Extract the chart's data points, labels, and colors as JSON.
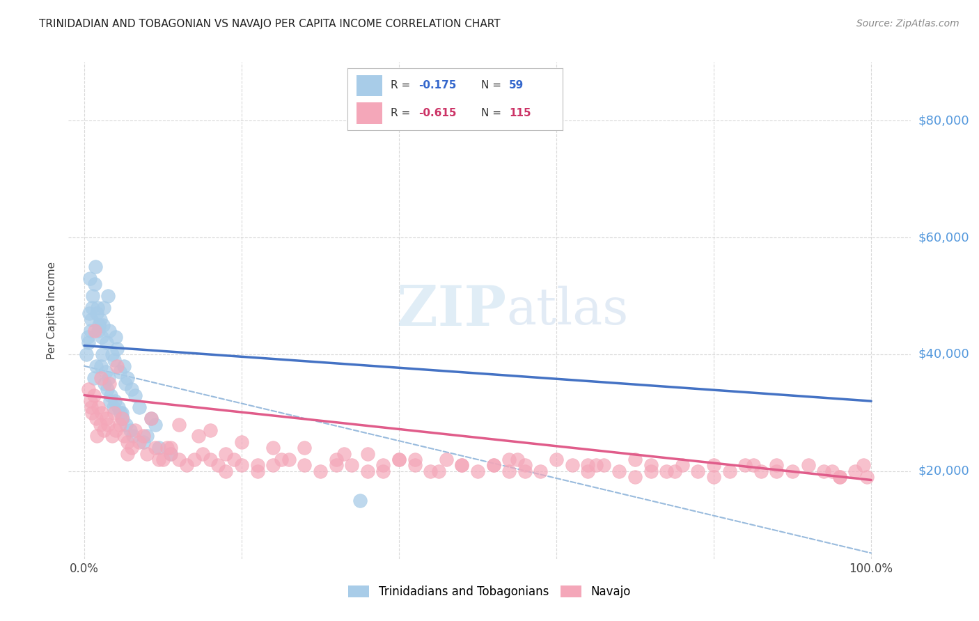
{
  "title": "TRINIDADIAN AND TOBAGONIAN VS NAVAJO PER CAPITA INCOME CORRELATION CHART",
  "source": "Source: ZipAtlas.com",
  "ylabel": "Per Capita Income",
  "legend_label1": "Trinidadians and Tobagonians",
  "legend_label2": "Navajo",
  "legend_r1": "R = -0.175",
  "legend_n1": "N =  59",
  "legend_r2": "R = -0.615",
  "legend_n2": "N = 115",
  "color_blue": "#a8cce8",
  "color_pink": "#f4a7b9",
  "color_blue_line": "#4472c4",
  "color_pink_line": "#e05c8a",
  "color_dashed": "#99bbdd",
  "watermark_zip": "ZIP",
  "watermark_atlas": "atlas",
  "background_color": "#ffffff",
  "grid_color": "#d0d0d0",
  "title_color": "#222222",
  "right_label_color": "#5599dd",
  "blue_scatter_x": [
    1.2,
    1.5,
    1.8,
    2.0,
    2.2,
    2.4,
    2.5,
    2.8,
    3.0,
    3.2,
    3.5,
    3.8,
    4.0,
    4.2,
    4.5,
    5.0,
    5.2,
    5.5,
    6.0,
    6.5,
    0.5,
    0.8,
    0.9,
    1.0,
    1.1,
    1.3,
    1.6,
    1.9,
    2.1,
    2.3,
    2.6,
    2.9,
    3.3,
    3.7,
    4.8,
    7.0,
    8.5,
    9.0,
    0.3,
    0.4,
    0.6,
    0.7,
    1.4,
    1.7,
    2.7,
    3.1,
    3.4,
    3.9,
    4.3,
    4.6,
    4.9,
    5.3,
    5.8,
    6.2,
    7.5,
    8.0,
    9.5,
    11.0,
    35.0
  ],
  "blue_scatter_y": [
    36000,
    38000,
    44000,
    46000,
    43000,
    45000,
    48000,
    42000,
    50000,
    44000,
    40000,
    39000,
    43000,
    41000,
    37000,
    38000,
    35000,
    36000,
    34000,
    33000,
    42000,
    44000,
    46000,
    48000,
    50000,
    52000,
    47000,
    45000,
    38000,
    40000,
    35000,
    34000,
    32000,
    31000,
    30000,
    31000,
    29000,
    28000,
    40000,
    43000,
    47000,
    53000,
    55000,
    48000,
    37000,
    36000,
    33000,
    32000,
    31000,
    30000,
    29000,
    28000,
    27000,
    26000,
    25000,
    26000,
    24000,
    23000,
    15000
  ],
  "pink_scatter_x": [
    0.5,
    0.8,
    1.0,
    1.2,
    1.5,
    1.8,
    2.0,
    2.2,
    2.5,
    2.8,
    3.0,
    3.5,
    4.0,
    4.5,
    5.0,
    5.5,
    6.0,
    7.0,
    8.0,
    9.0,
    10.0,
    11.0,
    12.0,
    13.0,
    14.0,
    15.0,
    16.0,
    17.0,
    18.0,
    19.0,
    20.0,
    22.0,
    24.0,
    26.0,
    28.0,
    30.0,
    32.0,
    34.0,
    36.0,
    38.0,
    40.0,
    42.0,
    44.0,
    46.0,
    48.0,
    50.0,
    52.0,
    54.0,
    56.0,
    58.0,
    60.0,
    62.0,
    64.0,
    66.0,
    68.0,
    70.0,
    72.0,
    74.0,
    76.0,
    78.0,
    80.0,
    82.0,
    84.0,
    86.0,
    88.0,
    90.0,
    92.0,
    94.0,
    96.0,
    98.0,
    99.0,
    99.5,
    3.2,
    3.8,
    6.5,
    10.5,
    14.5,
    20.0,
    28.0,
    36.0,
    42.0,
    52.0,
    4.2,
    8.5,
    12.0,
    16.0,
    24.0,
    33.0,
    40.0,
    48.0,
    56.0,
    64.0,
    72.0,
    80.0,
    88.0,
    96.0,
    1.3,
    2.1,
    4.8,
    7.5,
    11.0,
    18.0,
    25.0,
    32.0,
    45.0,
    55.0,
    65.0,
    75.0,
    85.0,
    95.0,
    0.9,
    1.6,
    5.5,
    9.5,
    22.0,
    38.0,
    54.0,
    70.0
  ],
  "pink_scatter_y": [
    34000,
    32000,
    30000,
    33000,
    29000,
    31000,
    28000,
    30000,
    27000,
    29000,
    28000,
    26000,
    27000,
    28000,
    26000,
    25000,
    24000,
    25000,
    23000,
    24000,
    22000,
    23000,
    22000,
    21000,
    22000,
    23000,
    22000,
    21000,
    20000,
    22000,
    21000,
    20000,
    21000,
    22000,
    21000,
    20000,
    22000,
    21000,
    20000,
    21000,
    22000,
    21000,
    20000,
    22000,
    21000,
    20000,
    21000,
    22000,
    21000,
    20000,
    22000,
    21000,
    20000,
    21000,
    20000,
    22000,
    21000,
    20000,
    21000,
    20000,
    21000,
    20000,
    21000,
    20000,
    21000,
    20000,
    21000,
    20000,
    19000,
    20000,
    21000,
    19000,
    35000,
    30000,
    27000,
    24000,
    26000,
    25000,
    24000,
    23000,
    22000,
    21000,
    38000,
    29000,
    28000,
    27000,
    24000,
    23000,
    22000,
    21000,
    20000,
    21000,
    20000,
    19000,
    20000,
    19000,
    44000,
    36000,
    29000,
    26000,
    24000,
    23000,
    22000,
    21000,
    20000,
    22000,
    21000,
    20000,
    21000,
    20000,
    31000,
    26000,
    23000,
    22000,
    21000,
    20000,
    20000,
    19000
  ],
  "blue_line_x": [
    0.0,
    100.0
  ],
  "blue_line_y": [
    41500,
    32000
  ],
  "pink_line_x": [
    0.0,
    100.0
  ],
  "pink_line_y": [
    33000,
    18500
  ],
  "dash_line_x": [
    0.0,
    100.0
  ],
  "dash_line_y": [
    38000,
    6000
  ],
  "xlim": [
    -2.0,
    105.0
  ],
  "ylim": [
    5000,
    90000
  ],
  "xticks": [
    0.0,
    20.0,
    40.0,
    60.0,
    80.0,
    100.0
  ],
  "yticks": [
    20000,
    40000,
    60000,
    80000
  ],
  "ytick_labels": [
    "$20,000",
    "$40,000",
    "$60,000",
    "$80,000"
  ]
}
